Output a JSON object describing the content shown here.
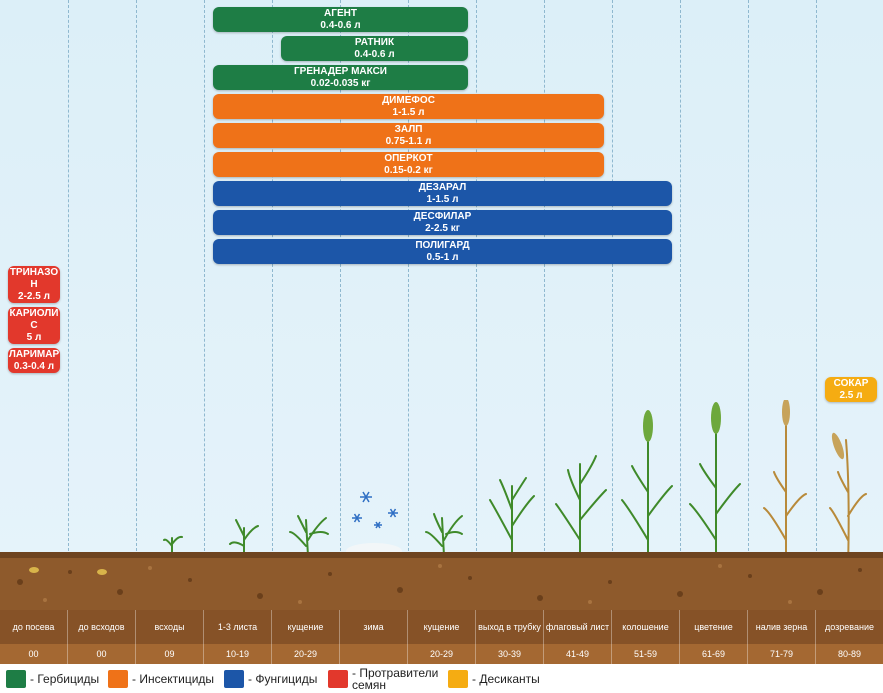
{
  "colors": {
    "herbicide": "#1e7d45",
    "insecticide": "#ef7218",
    "fungicide": "#1c56a8",
    "seed_treatment": "#e2382c",
    "desiccant": "#f5ac12"
  },
  "products": {
    "agent": {
      "name": "АГЕНТ",
      "dose": "0.4-0.6 л",
      "category": "herbicide"
    },
    "ratnik": {
      "name": "РАТНИК",
      "dose": "0.4-0.6 л",
      "category": "herbicide"
    },
    "grenader": {
      "name": "ГРЕНАДЕР МАКСИ",
      "dose": "0.02-0.035 кг",
      "category": "herbicide"
    },
    "dimefos": {
      "name": "ДИМЕФОС",
      "dose": "1-1.5 л",
      "category": "insecticide"
    },
    "zalp": {
      "name": "ЗАЛП",
      "dose": "0.75-1.1 л",
      "category": "insecticide"
    },
    "operkot": {
      "name": "ОПЕРКОТ",
      "dose": "0.15-0.2 кг",
      "category": "insecticide"
    },
    "dezaral": {
      "name": "ДЕЗАРАЛ",
      "dose": "1-1.5 л",
      "category": "fungicide"
    },
    "desfilar": {
      "name": "ДЕСФИЛАР",
      "dose": "2-2.5 кг",
      "category": "fungicide"
    },
    "poligard": {
      "name": "ПОЛИГАРД",
      "dose": "0.5-1 л",
      "category": "fungicide"
    },
    "trinazon": {
      "name_l1": "ТРИНАЗО",
      "name_l2": "Н",
      "dose": "2-2.5 л",
      "category": "seed_treatment"
    },
    "karioli": {
      "name_l1": "КАРИОЛИ",
      "name_l2": "С",
      "dose": "5 л",
      "category": "seed_treatment"
    },
    "larimar": {
      "name": "ЛАРИМАР",
      "dose": "0.3-0.4 л",
      "category": "seed_treatment"
    },
    "sokar": {
      "name": "СОКАР",
      "dose": "2.5 л",
      "category": "desiccant"
    }
  },
  "stages": [
    {
      "name": "до посева",
      "code": "00"
    },
    {
      "name": "до всходов",
      "code": "00"
    },
    {
      "name": "всходы",
      "code": "09"
    },
    {
      "name": "1-3 листа",
      "code": "10-19"
    },
    {
      "name": "кущение",
      "code": "20-29"
    },
    {
      "name": "зима",
      "code": ""
    },
    {
      "name": "кущение",
      "code": "20-29"
    },
    {
      "name": "выход в трубку",
      "code": "30-39"
    },
    {
      "name": "флаговый лист",
      "code": "41-49"
    },
    {
      "name": "колошение",
      "code": "51-59"
    },
    {
      "name": "цветение",
      "code": "61-69"
    },
    {
      "name": "налив зерна",
      "code": "71-79"
    },
    {
      "name": "дозревание",
      "code": "80-89"
    }
  ],
  "legend": [
    {
      "label": "- Гербициды",
      "color": "#1e7d45",
      "icon": "green-square-icon"
    },
    {
      "label": "- Инсектициды",
      "color": "#ef7218",
      "icon": "orange-square-icon"
    },
    {
      "label": "- Фунгициды",
      "color": "#1c56a8",
      "icon": "blue-square-icon"
    },
    {
      "label": "- Протравители семян",
      "color": "#e2382c",
      "icon": "red-square-icon"
    },
    {
      "label": "- Десиканты",
      "color": "#f5ac12",
      "icon": "yellow-square-icon"
    }
  ]
}
